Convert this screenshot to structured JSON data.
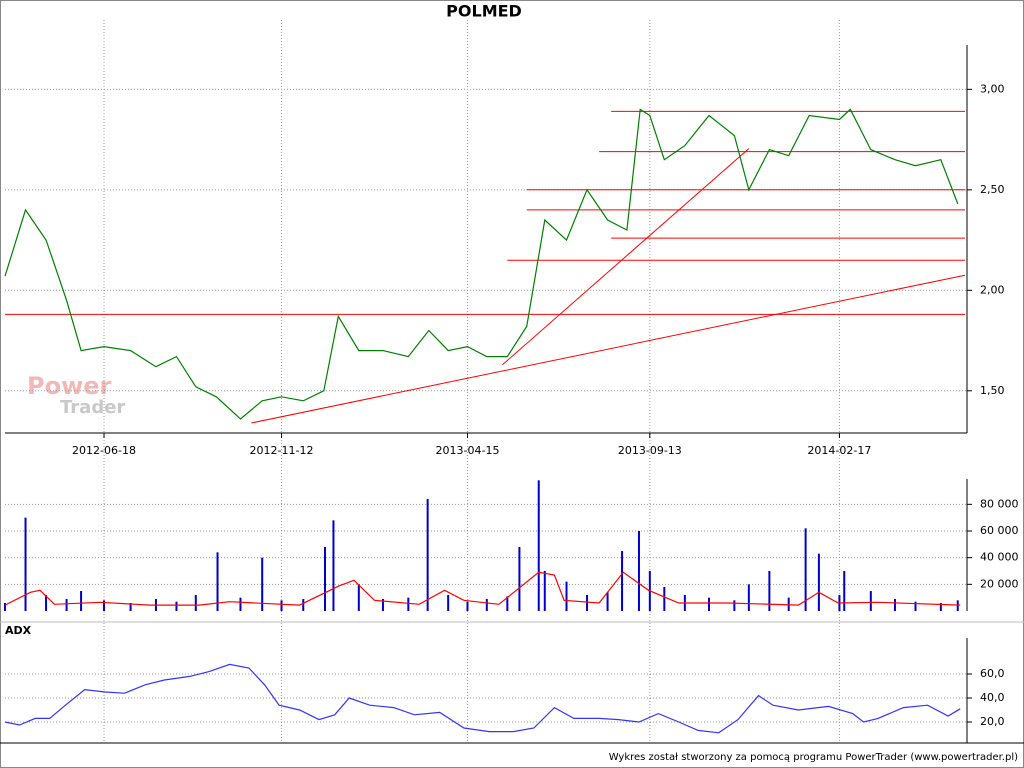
{
  "chart_data": [
    {
      "type": "line",
      "title": "POLMED",
      "watermark": [
        "Power",
        "Trader"
      ],
      "xlim": [
        "2012-03-28",
        "2014-06-01"
      ],
      "xticks": [
        "2012-06-18",
        "2012-11-12",
        "2013-04-15",
        "2013-09-13",
        "2014-02-17"
      ],
      "ylim": [
        1.29,
        3.345
      ],
      "yticks": [
        {
          "value": 1.5,
          "label": "1,50"
        },
        {
          "value": 2,
          "label": "2,00"
        },
        {
          "value": 2.5,
          "label": "2,50"
        },
        {
          "value": 3,
          "label": "3,00"
        }
      ],
      "grid": true,
      "series": [
        {
          "color": "#008000",
          "x": [
            "2012-03-28",
            "2012-04-14",
            "2012-05-01",
            "2012-05-18",
            "2012-05-30",
            "2012-06-18",
            "2012-07-10",
            "2012-07-31",
            "2012-08-17",
            "2012-09-02",
            "2012-09-19",
            "2012-10-09",
            "2012-10-27",
            "2012-11-12",
            "2012-11-30",
            "2012-12-17",
            "2012-12-29",
            "2013-01-15",
            "2013-02-04",
            "2013-02-25",
            "2013-03-14",
            "2013-03-30",
            "2013-04-15",
            "2013-05-01",
            "2013-05-18",
            "2013-06-03",
            "2013-06-18",
            "2013-07-06",
            "2013-07-23",
            "2013-08-09",
            "2013-08-25",
            "2013-09-05",
            "2013-09-13",
            "2013-09-25",
            "2013-10-12",
            "2013-11-01",
            "2013-11-22",
            "2013-12-04",
            "2013-12-21",
            "2014-01-06",
            "2014-01-23",
            "2014-02-17",
            "2014-02-26",
            "2014-03-15",
            "2014-04-04",
            "2014-04-21",
            "2014-05-12",
            "2014-05-26"
          ],
          "values": [
            2.07,
            2.4,
            2.25,
            1.95,
            1.7,
            1.72,
            1.7,
            1.62,
            1.67,
            1.52,
            1.47,
            1.36,
            1.45,
            1.47,
            1.45,
            1.5,
            1.87,
            1.7,
            1.7,
            1.67,
            1.8,
            1.7,
            1.72,
            1.67,
            1.67,
            1.82,
            2.35,
            2.25,
            2.5,
            2.35,
            2.3,
            2.9,
            2.87,
            2.65,
            2.72,
            2.87,
            2.77,
            2.5,
            2.7,
            2.67,
            2.87,
            2.85,
            2.9,
            2.7,
            2.65,
            2.62,
            2.65,
            2.43
          ]
        }
      ],
      "lines_color": "#ff0000",
      "lines": [
        {
          "x": [
            "2013-08-12",
            "2014-06-01"
          ],
          "values": [
            2.89,
            2.89
          ]
        },
        {
          "x": [
            "2013-08-02",
            "2014-06-01"
          ],
          "values": [
            2.69,
            2.69
          ]
        },
        {
          "x": [
            "2013-06-03",
            "2014-06-01"
          ],
          "values": [
            2.5,
            2.5
          ]
        },
        {
          "x": [
            "2013-06-03",
            "2014-06-01"
          ],
          "values": [
            2.4,
            2.4
          ]
        },
        {
          "x": [
            "2013-08-12",
            "2014-06-01"
          ],
          "values": [
            2.26,
            2.26
          ]
        },
        {
          "x": [
            "2013-05-18",
            "2014-06-01"
          ],
          "values": [
            2.15,
            2.15
          ]
        },
        {
          "x": [
            "2012-03-28",
            "2014-06-01"
          ],
          "values": [
            1.88,
            1.88
          ]
        },
        {
          "x": [
            "2012-10-18",
            "2014-06-01"
          ],
          "values": [
            1.34,
            2.075
          ]
        },
        {
          "x": [
            "2013-05-14",
            "2013-12-04"
          ],
          "values": [
            1.63,
            2.705
          ]
        }
      ]
    },
    {
      "type": "bar",
      "color": "#0000cc",
      "xlim": [
        "2012-03-28",
        "2014-06-01"
      ],
      "ylim": [
        0,
        99000
      ],
      "yticks": [
        {
          "value": 20000,
          "label": "20 000"
        },
        {
          "value": 40000,
          "label": "40 000"
        },
        {
          "value": 60000,
          "label": "60 000"
        },
        {
          "value": 80000,
          "label": "80 000"
        }
      ],
      "grid": true,
      "x": [
        "2012-03-28",
        "2012-04-14",
        "2012-05-01",
        "2012-05-18",
        "2012-05-30",
        "2012-06-18",
        "2012-07-10",
        "2012-07-31",
        "2012-08-17",
        "2012-09-02",
        "2012-09-20",
        "2012-10-09",
        "2012-10-27",
        "2012-11-12",
        "2012-11-30",
        "2012-12-18",
        "2012-12-25",
        "2013-01-15",
        "2013-02-04",
        "2013-02-25",
        "2013-03-13",
        "2013-03-30",
        "2013-04-15",
        "2013-05-01",
        "2013-05-18",
        "2013-05-28",
        "2013-06-13",
        "2013-06-18",
        "2013-07-06",
        "2013-07-23",
        "2013-08-09",
        "2013-08-21",
        "2013-09-04",
        "2013-09-13",
        "2013-09-25",
        "2013-10-12",
        "2013-11-01",
        "2013-11-22",
        "2013-12-04",
        "2013-12-21",
        "2014-01-06",
        "2014-01-20",
        "2014-01-31",
        "2014-02-17",
        "2014-02-21",
        "2014-03-15",
        "2014-04-04",
        "2014-04-21",
        "2014-05-12",
        "2014-05-26"
      ],
      "values": [
        6000,
        70000,
        12000,
        9000,
        15000,
        8000,
        6000,
        9000,
        7000,
        12000,
        44000,
        10000,
        40000,
        8000,
        9000,
        48000,
        68000,
        20000,
        9000,
        10000,
        84000,
        12000,
        7000,
        9000,
        11000,
        48000,
        98000,
        30000,
        22000,
        12000,
        14000,
        45000,
        60000,
        30000,
        18000,
        12000,
        10000,
        8000,
        20000,
        30000,
        10000,
        62000,
        43000,
        12000,
        30000,
        15000,
        9000,
        7000,
        6000,
        8000
      ],
      "average": {
        "color": "#ff0000",
        "x": [
          "2012-03-28",
          "2012-04-18",
          "2012-04-26",
          "2012-05-08",
          "2012-06-15",
          "2012-07-26",
          "2012-09-05",
          "2012-09-30",
          "2012-11-02",
          "2012-11-27",
          "2012-12-30",
          "2013-01-11",
          "2013-01-28",
          "2013-03-06",
          "2013-03-27",
          "2013-04-12",
          "2013-05-11",
          "2013-06-13",
          "2013-06-26",
          "2013-07-04",
          "2013-08-02",
          "2013-08-22",
          "2013-09-12",
          "2013-10-07",
          "2013-11-17",
          "2014-01-14",
          "2014-01-31",
          "2014-02-16",
          "2014-03-21",
          "2014-05-28"
        ],
        "values": [
          4400,
          14000,
          15500,
          5000,
          6500,
          4400,
          4400,
          7000,
          5500,
          4400,
          19000,
          23000,
          8000,
          5000,
          15500,
          8000,
          5000,
          29000,
          27000,
          8000,
          6000,
          29000,
          15500,
          6000,
          6000,
          4400,
          14000,
          6000,
          6500,
          4400
        ]
      }
    },
    {
      "type": "line",
      "title": "ADX",
      "xlim": [
        "2012-03-28",
        "2014-06-01"
      ],
      "ylim": [
        2.5,
        90
      ],
      "yticks": [
        {
          "value": 20,
          "label": "20,0"
        },
        {
          "value": 40,
          "label": "40,0"
        },
        {
          "value": 60,
          "label": "60,0"
        }
      ],
      "grid": true,
      "series": [
        {
          "color": "#3333ff",
          "x": [
            "2012-03-28",
            "2012-04-09",
            "2012-04-22",
            "2012-05-04",
            "2012-05-17",
            "2012-06-02",
            "2012-06-19",
            "2012-07-05",
            "2012-07-22",
            "2012-08-07",
            "2012-08-28",
            "2012-09-13",
            "2012-09-30",
            "2012-10-16",
            "2012-10-29",
            "2012-11-10",
            "2012-11-27",
            "2012-12-13",
            "2012-12-26",
            "2013-01-07",
            "2013-01-24",
            "2013-02-13",
            "2013-03-02",
            "2013-03-23",
            "2013-04-12",
            "2013-05-03",
            "2013-05-23",
            "2013-06-09",
            "2013-06-26",
            "2013-07-12",
            "2013-08-02",
            "2013-08-18",
            "2013-09-04",
            "2013-09-20",
            "2013-10-07",
            "2013-10-23",
            "2013-11-09",
            "2013-11-25",
            "2013-12-12",
            "2013-12-24",
            "2014-01-14",
            "2014-02-08",
            "2014-02-28",
            "2014-03-09",
            "2014-03-21",
            "2014-04-11",
            "2014-05-01",
            "2014-05-18",
            "2014-05-28"
          ],
          "values": [
            20,
            17.5,
            23,
            23,
            34,
            47,
            45,
            44,
            51,
            55,
            58,
            62,
            68,
            65,
            51,
            34,
            30,
            22,
            26,
            40,
            34,
            32,
            26,
            28,
            15,
            12,
            12,
            15,
            32,
            23,
            23,
            22,
            20,
            27,
            20,
            13,
            11,
            22,
            42,
            34,
            30,
            33,
            27,
            20,
            23,
            32,
            34,
            25,
            31
          ]
        }
      ]
    }
  ],
  "footer": "Wykres został stworzony za pomocą programu PowerTrader (www.powertrader.pl)"
}
